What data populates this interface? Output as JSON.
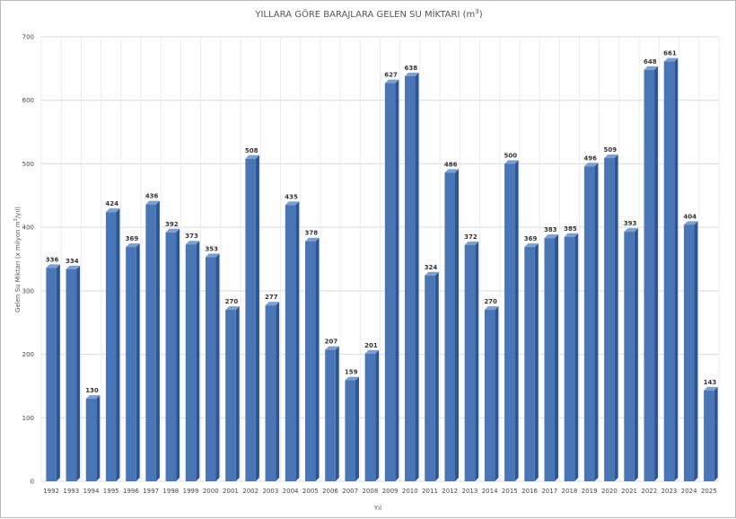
{
  "chart_data": {
    "type": "bar",
    "title": "YILLARA GÖRE BARAJLARA GELEN SU MİKTARI (m",
    "title_superscript": "3",
    "title_suffix": ")",
    "xlabel": "Yıl",
    "ylabel": "Gelen Su Miktarı (x milyon m",
    "ylabel_superscript": "3",
    "ylabel_suffix": "/yıl)",
    "ylim": [
      0,
      700
    ],
    "yticks": [
      0,
      100,
      200,
      300,
      400,
      500,
      600,
      700
    ],
    "grid": true,
    "legend": "none",
    "categories": [
      "1992",
      "1993",
      "1994",
      "1995",
      "1996",
      "1997",
      "1998",
      "1999",
      "2000",
      "2001",
      "2002",
      "2003",
      "2004",
      "2005",
      "2006",
      "2007",
      "2008",
      "2009",
      "2010",
      "2011",
      "2012",
      "2013",
      "2014",
      "2015",
      "2016",
      "2017",
      "2018",
      "2019",
      "2020",
      "2021",
      "2022",
      "2023",
      "2024",
      "2025"
    ],
    "values": [
      336,
      334,
      130,
      424,
      369,
      436,
      392,
      373,
      353,
      270,
      508,
      277,
      435,
      378,
      207,
      159,
      201,
      627,
      638,
      324,
      486,
      372,
      270,
      500,
      369,
      383,
      385,
      496,
      509,
      393,
      648,
      661,
      404,
      143
    ],
    "colors": {
      "bar": "#4a76b5",
      "bar_dark": "#2c5594",
      "bar_top": "#7a9fd4",
      "grid": "#d9d9d9"
    }
  }
}
